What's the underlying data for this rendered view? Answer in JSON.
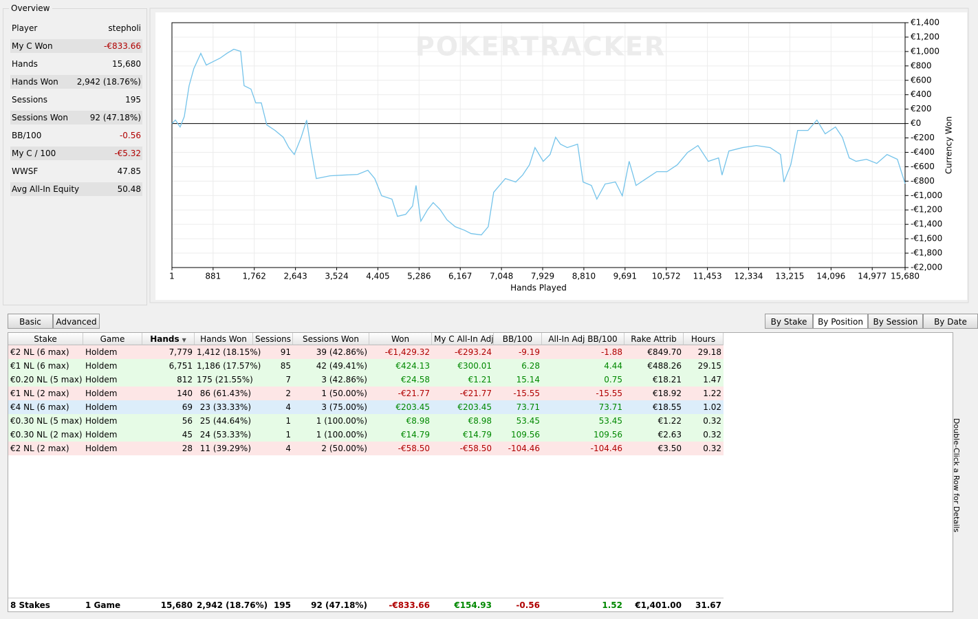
{
  "overview": {
    "title": "Overview",
    "rows": [
      [
        "Player",
        "stepholi"
      ],
      [
        "My C Won",
        "-€833.66"
      ],
      [
        "Hands",
        "15,680"
      ],
      [
        "Hands Won",
        "2,942 (18.76%)"
      ],
      [
        "Sessions",
        "195"
      ],
      [
        "Sessions Won",
        "92 (47.18%)"
      ],
      [
        "BB/100",
        "-0.56"
      ],
      [
        "My C / 100",
        "-€5.32"
      ],
      [
        "WWSF",
        "47.85"
      ],
      [
        "Avg All-In Equity",
        "50.48"
      ]
    ]
  },
  "chart_data": {
    "type": "line",
    "watermark": "POKERTRACKER",
    "x_label": "Hands Played",
    "y_label": "Currency Won",
    "grid": true,
    "reference_line": 0,
    "xlim": [
      1,
      15680
    ],
    "ylim": [
      -2000,
      1400
    ],
    "xticks": [
      1,
      881,
      {
        "value": 1762,
        "label": "1,762"
      },
      {
        "value": 2643,
        "label": "2,643"
      },
      {
        "value": 3524,
        "label": "3,524"
      },
      {
        "value": 4405,
        "label": "4,405"
      },
      {
        "value": 5286,
        "label": "5,286"
      },
      {
        "value": 6167,
        "label": "6,167"
      },
      {
        "value": 7048,
        "label": "7,048"
      },
      {
        "value": 7929,
        "label": "7,929"
      },
      {
        "value": 8810,
        "label": "8,810"
      },
      {
        "value": 9691,
        "label": "9,691"
      },
      {
        "value": 10572,
        "label": "10,572"
      },
      {
        "value": 11453,
        "label": "11,453"
      },
      {
        "value": 12334,
        "label": "12,334"
      },
      {
        "value": 13215,
        "label": "13,215"
      },
      {
        "value": 14096,
        "label": "14,096"
      },
      {
        "value": 14977,
        "label": "14,977"
      },
      {
        "value": 15680,
        "label": "15,680"
      }
    ],
    "yticks": [
      {
        "value": 1400,
        "label": "€1,400"
      },
      {
        "value": 1200,
        "label": "€1,200"
      },
      {
        "value": 1000,
        "label": "€1,000"
      },
      {
        "value": 800,
        "label": "€800"
      },
      {
        "value": 600,
        "label": "€600"
      },
      {
        "value": 400,
        "label": "€400"
      },
      {
        "value": 200,
        "label": "€200"
      },
      {
        "value": 0,
        "label": "€0"
      },
      {
        "value": -200,
        "label": "-€200"
      },
      {
        "value": -400,
        "label": "-€400"
      },
      {
        "value": -600,
        "label": "-€600"
      },
      {
        "value": -800,
        "label": "-€800"
      },
      {
        "value": -1000,
        "label": "-€1,000"
      },
      {
        "value": -1200,
        "label": "-€1,200"
      },
      {
        "value": -1400,
        "label": "-€1,400"
      },
      {
        "value": -1600,
        "label": "-€1,600"
      },
      {
        "value": -1800,
        "label": "-€1,800"
      },
      {
        "value": -2000,
        "label": "-€2,000"
      }
    ],
    "x": [
      1,
      74,
      176,
      265,
      368,
      470,
      618,
      735,
      882,
      1029,
      1176,
      1323,
      1470,
      1544,
      1691,
      1794,
      1912,
      2029,
      2206,
      2382,
      2500,
      2618,
      2765,
      2882,
      2971,
      3088,
      3382,
      3676,
      3971,
      4191,
      4338,
      4485,
      4706,
      4824,
      5000,
      5147,
      5221,
      5324,
      5471,
      5588,
      5735,
      5882,
      6059,
      6250,
      6397,
      6618,
      6765,
      6882,
      7132,
      7353,
      7500,
      7647,
      7765,
      7941,
      8088,
      8206,
      8309,
      8456,
      8676,
      8794,
      8971,
      9088,
      9265,
      9485,
      9632,
      9779,
      9926,
      10147,
      10368,
      10588,
      10809,
      11029,
      11250,
      11471,
      11691,
      11765,
      11912,
      12206,
      12500,
      12794,
      13015,
      13088,
      13235,
      13382,
      13603,
      13794,
      13971,
      14191,
      14338,
      14485,
      14632,
      14853,
      15074,
      15294,
      15515,
      15680
    ],
    "series": [
      {
        "name": "Currency Won",
        "color": "#74c3ea",
        "values": [
          0,
          48,
          -48,
          96,
          525,
          764,
          974,
          812,
          860,
          907,
          974,
          1031,
          1003,
          525,
          478,
          287,
          287,
          -19,
          -96,
          -191,
          -334,
          -430,
          -191,
          48,
          -334,
          -764,
          -726,
          -716,
          -707,
          -649,
          -764,
          -1003,
          -1050,
          -1289,
          -1261,
          -1146,
          -860,
          -1356,
          -1194,
          -1098,
          -1194,
          -1337,
          -1433,
          -1480,
          -1528,
          -1547,
          -1433,
          -955,
          -764,
          -812,
          -716,
          -573,
          -334,
          -525,
          -430,
          -191,
          -287,
          -334,
          -287,
          -812,
          -860,
          -1050,
          -840,
          -812,
          -1003,
          -525,
          -860,
          -764,
          -669,
          -669,
          -573,
          -401,
          -306,
          -525,
          -478,
          -716,
          -382,
          -334,
          -306,
          -334,
          -430,
          -812,
          -573,
          -96,
          -96,
          48,
          -143,
          -48,
          -191,
          -478,
          -525,
          -497,
          -554,
          -430,
          -497,
          -834
        ]
      }
    ]
  },
  "tabs_left": [
    "Basic",
    "Advanced"
  ],
  "tabs_right": [
    "By Stake",
    "By Position",
    "By Session",
    "By Date"
  ],
  "table": {
    "columns": [
      "Stake",
      "Game",
      "Hands",
      "Hands Won",
      "Sessions",
      "Sessions Won",
      "Won",
      "My C All-In Adj",
      "BB/100",
      "All-In Adj BB/100",
      "Rake Attrib",
      "Hours"
    ],
    "rows": [
      [
        "€2 NL (6 max)",
        "Holdem",
        "7,779",
        "1,412 (18.15%)",
        "91",
        "39 (42.86%)",
        "-€1,429.32",
        "-€293.24",
        "-9.19",
        "-1.88",
        "€849.70",
        "29.18"
      ],
      [
        "€1 NL (6 max)",
        "Holdem",
        "6,751",
        "1,186 (17.57%)",
        "85",
        "42 (49.41%)",
        "€424.13",
        "€300.01",
        "6.28",
        "4.44",
        "€488.26",
        "29.15"
      ],
      [
        "€0.20 NL (5 max)",
        "Holdem",
        "812",
        "175 (21.55%)",
        "7",
        "3 (42.86%)",
        "€24.58",
        "€1.21",
        "15.14",
        "0.75",
        "€18.21",
        "1.47"
      ],
      [
        "€1 NL (2 max)",
        "Holdem",
        "140",
        "86 (61.43%)",
        "2",
        "1 (50.00%)",
        "-€21.77",
        "-€21.77",
        "-15.55",
        "-15.55",
        "€18.92",
        "1.22"
      ],
      [
        "€4 NL (6 max)",
        "Holdem",
        "69",
        "23 (33.33%)",
        "4",
        "3 (75.00%)",
        "€203.45",
        "€203.45",
        "73.71",
        "73.71",
        "€18.55",
        "1.02"
      ],
      [
        "€0.30 NL (5 max)",
        "Holdem",
        "56",
        "25 (44.64%)",
        "1",
        "1 (100.00%)",
        "€8.98",
        "€8.98",
        "53.45",
        "53.45",
        "€1.22",
        "0.32"
      ],
      [
        "€0.30 NL (2 max)",
        "Holdem",
        "45",
        "24 (53.33%)",
        "1",
        "1 (100.00%)",
        "€14.79",
        "€14.79",
        "109.56",
        "109.56",
        "€2.63",
        "0.32"
      ],
      [
        "€2 NL (2 max)",
        "Holdem",
        "28",
        "11 (39.29%)",
        "4",
        "2 (50.00%)",
        "-€58.50",
        "-€58.50",
        "-104.46",
        "-104.46",
        "€3.50",
        "0.32"
      ]
    ],
    "totals": [
      "8 Stakes",
      "1 Game",
      "15,680",
      "2,942 (18.76%)",
      "195",
      "92 (47.18%)",
      "-€833.66",
      "€154.93",
      "-0.56",
      "1.52",
      "€1,401.00",
      "31.67"
    ]
  },
  "side_note": "Double-Click a Row for Details"
}
